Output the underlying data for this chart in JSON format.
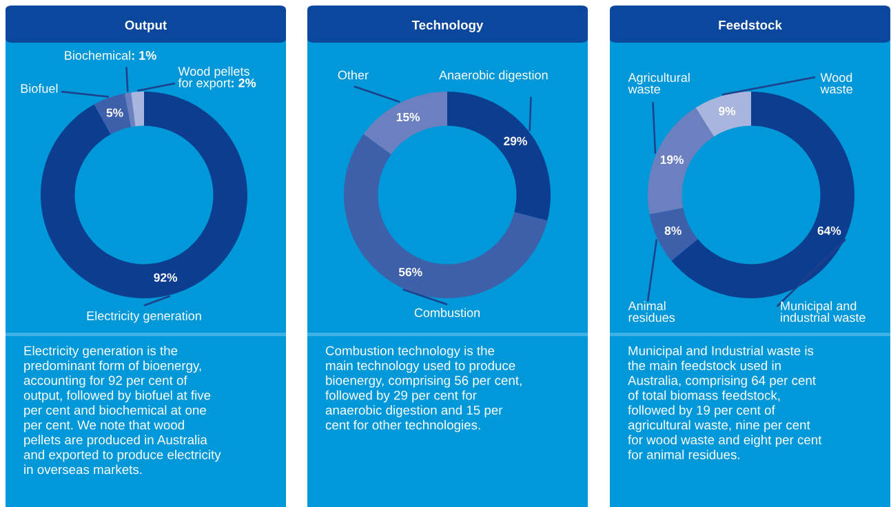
{
  "chart_data": [
    {
      "type": "donut",
      "title": "Output",
      "categories": [
        "Electricity generation",
        "Biofuel",
        "Biochemical",
        "Wood pellets\nfor export"
      ],
      "values": [
        92,
        5,
        1,
        2
      ],
      "colors": [
        "#0c3d8e",
        "#3e5fa9",
        "#6c80c0",
        "#a9b5dc"
      ],
      "value_labels": [
        "92%",
        "5%",
        ": 1%",
        ": 2%"
      ],
      "annotations": [
        "Electricity generation is the\npredominant form of bioenergy,\naccounting for 92 per cent of\noutput, followed by biofuel at five\nper cent and biochemical at one\nper cent. We note that wood\npellets are produced in Australia\nand exported to produce electricity\nin overseas markets."
      ]
    },
    {
      "type": "donut",
      "title": "Technology",
      "categories": [
        "Anaerobic digestion",
        "Combustion",
        "Other"
      ],
      "values": [
        29,
        56,
        15
      ],
      "colors": [
        "#0c3d8e",
        "#3e5fa9",
        "#6c80c0"
      ],
      "value_labels": [
        "29%",
        "56%",
        "15%"
      ],
      "annotations": [
        "Combustion technology is the\nmain technology used to produce\nbioenergy, comprising 56 per cent,\nfollowed by 29 per cent for\nanaerobic digestion and 15 per\ncent for other technologies."
      ]
    },
    {
      "type": "donut",
      "title": "Feedstock",
      "categories": [
        "Municipal and\nindustrial waste",
        "Animal\nresidues",
        "Agricultural\nwaste",
        "Wood\nwaste"
      ],
      "values": [
        64,
        8,
        19,
        9
      ],
      "colors": [
        "#0c3d8e",
        "#3e5fa9",
        "#6c80c0",
        "#a9b5dc"
      ],
      "value_labels": [
        "64%",
        "8%",
        "19%",
        "9%"
      ],
      "annotations": [
        "Municipal and Industrial waste is\nthe main feedstock used in\nAustralia, comprising 64 per cent\nof total biomass feedstock,\nfollowed by 19 per cent of\nagricultural waste, nine per cent\nfor wood waste and eight per cent\nfor animal residues."
      ]
    }
  ]
}
